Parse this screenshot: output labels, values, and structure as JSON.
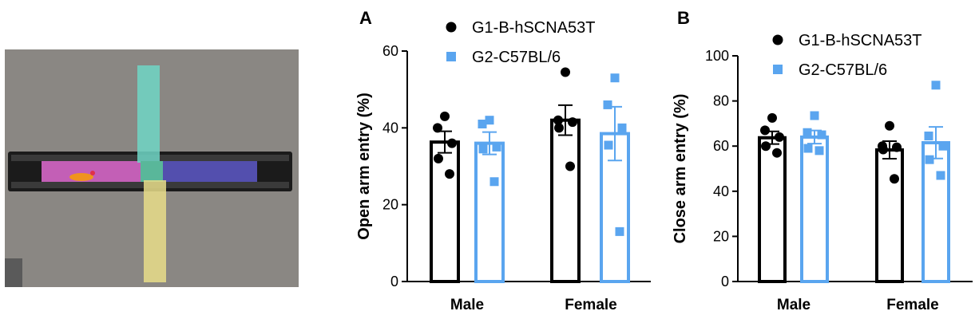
{
  "photo": {
    "description_icon": "elevated-plus-maze-photo",
    "colors": {
      "background": "#8a8783",
      "open_arm_top": "#6fd6c6",
      "open_arm_bottom": "#e8dd8a",
      "closed_arm_left": "#d667c8",
      "closed_arm_right": "#5d58c8",
      "center": "#59b79a",
      "frame": "#1b1b1b",
      "mouse": "#f0941e"
    }
  },
  "colors": {
    "group1": "#000000",
    "group2": "#5aa5ef"
  },
  "chart_data": [
    {
      "panel": "A",
      "type": "bar",
      "title": "",
      "xlabel": "",
      "ylabel": "Open arm entry (%)",
      "ylim": [
        0,
        60
      ],
      "yticks": [
        0,
        20,
        40,
        60
      ],
      "categories": [
        "Male",
        "Female"
      ],
      "series": [
        {
          "name": "G1-B-hSCNA53T",
          "marker": "circle",
          "means": [
            36.3,
            42.0
          ],
          "sems": [
            2.8,
            3.9
          ],
          "points": [
            [
              43,
              40,
              36,
              32,
              28
            ],
            [
              54.5,
              42,
              41.5,
              40,
              30
            ]
          ]
        },
        {
          "name": "G2-C57BL/6",
          "marker": "square",
          "means": [
            36.0,
            38.5
          ],
          "sems": [
            2.9,
            7.0
          ],
          "points": [
            [
              42,
              41,
              35,
              34.5,
              26
            ],
            [
              53,
              46,
              40,
              35.5,
              13
            ]
          ]
        }
      ]
    },
    {
      "panel": "B",
      "type": "bar",
      "title": "",
      "xlabel": "",
      "ylabel": "Close arm entry (%)",
      "ylim": [
        0,
        100
      ],
      "yticks": [
        0,
        20,
        40,
        60,
        80,
        100
      ],
      "categories": [
        "Male",
        "Female"
      ],
      "series": [
        {
          "name": "G1-B-hSCNA53T",
          "marker": "circle",
          "means": [
            63.7,
            58.3
          ],
          "sems": [
            2.8,
            3.9
          ],
          "points": [
            [
              72.5,
              67,
              64,
              60,
              57
            ],
            [
              69,
              60,
              59.5,
              58.5,
              45.5
            ]
          ]
        },
        {
          "name": "G2-C57BL/6",
          "marker": "square",
          "means": [
            64.0,
            61.5
          ],
          "sems": [
            2.9,
            7.0
          ],
          "points": [
            [
              73.5,
              66,
              65,
              59,
              58
            ],
            [
              87,
              64.5,
              60,
              54,
              47
            ]
          ]
        }
      ]
    }
  ]
}
